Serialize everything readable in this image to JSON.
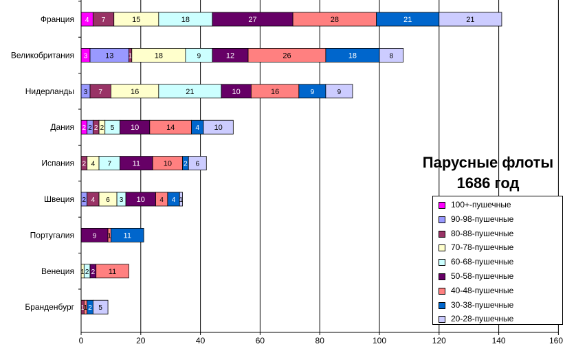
{
  "chart_data": {
    "type": "bar",
    "orientation": "horizontal",
    "stacked": true,
    "title": "Парусные флоты 1686 год",
    "title_lines": [
      "Парусные флоты",
      "1686 год"
    ],
    "categories": [
      "Франция",
      "Великобритания",
      "Нидерланды",
      "Дания",
      "Испания",
      "Швеция",
      "Португалия",
      "Венеция",
      "Бранденбург"
    ],
    "xlim": [
      0,
      160
    ],
    "xticks": [
      0,
      20,
      40,
      60,
      80,
      100,
      120,
      140,
      160
    ],
    "grid": true,
    "legend_position": "bottom-right",
    "series": [
      {
        "name": "100+-пушечные",
        "color": "#ff00ff",
        "values": [
          4,
          3,
          0,
          2,
          0,
          0,
          0,
          0,
          0
        ]
      },
      {
        "name": "90-98-пушечные",
        "color": "#9999ff",
        "values": [
          0,
          13,
          3,
          2,
          0,
          2,
          0,
          0,
          0
        ]
      },
      {
        "name": "80-88-пушечные",
        "color": "#993366",
        "values": [
          7,
          1,
          7,
          2,
          2,
          4,
          0,
          0,
          1
        ]
      },
      {
        "name": "70-78-пушечные",
        "color": "#ffffcc",
        "values": [
          15,
          18,
          16,
          2,
          4,
          6,
          0,
          1,
          0
        ]
      },
      {
        "name": "60-68-пушечные",
        "color": "#ccffff",
        "values": [
          18,
          9,
          21,
          5,
          7,
          3,
          0,
          2,
          0
        ]
      },
      {
        "name": "50-58-пушечные",
        "color": "#660066",
        "values": [
          27,
          12,
          10,
          10,
          11,
          10,
          9,
          2,
          0
        ]
      },
      {
        "name": "40-48-пушечные",
        "color": "#ff8080",
        "values": [
          28,
          26,
          16,
          14,
          10,
          4,
          1,
          11,
          1
        ]
      },
      {
        "name": "30-38-пушечные",
        "color": "#0066cc",
        "values": [
          21,
          18,
          9,
          4,
          2,
          4,
          11,
          0,
          2
        ]
      },
      {
        "name": "20-28-пушечные",
        "color": "#ccccff",
        "values": [
          21,
          8,
          9,
          10,
          6,
          1,
          0,
          0,
          5
        ]
      }
    ]
  }
}
